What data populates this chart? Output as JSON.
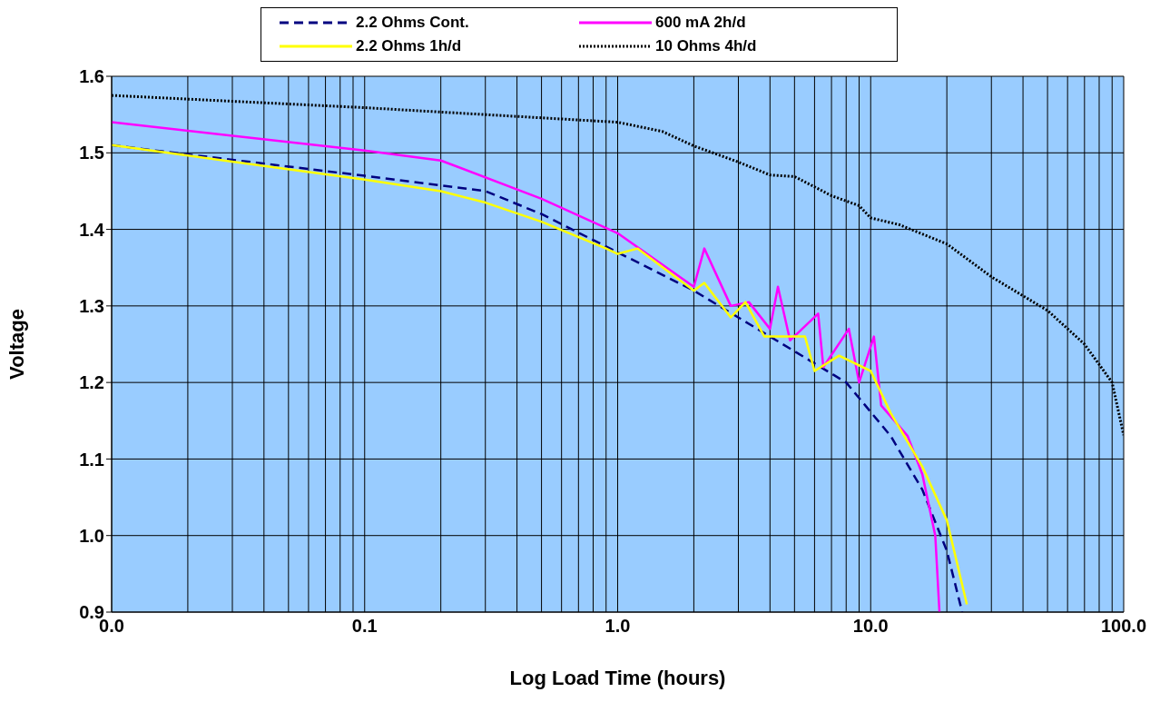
{
  "chart_data": {
    "type": "line",
    "xlabel": "Log Load Time (hours)",
    "ylabel": "Voltage",
    "log": "x",
    "grid": true,
    "legend": "top",
    "xlim": [
      0.01,
      100
    ],
    "xticks": [
      {
        "value": 0.01,
        "label": "0.0"
      },
      {
        "value": 0.02,
        "label": null
      },
      {
        "value": 0.03,
        "label": null
      },
      {
        "value": 0.04,
        "label": null
      },
      {
        "value": 0.05,
        "label": null
      },
      {
        "value": 0.06,
        "label": null
      },
      {
        "value": 0.07,
        "label": null
      },
      {
        "value": 0.08,
        "label": null
      },
      {
        "value": 0.09,
        "label": null
      },
      {
        "value": 0.1,
        "label": "0.1"
      },
      {
        "value": 0.2,
        "label": null
      },
      {
        "value": 0.3,
        "label": null
      },
      {
        "value": 0.4,
        "label": null
      },
      {
        "value": 0.5,
        "label": null
      },
      {
        "value": 0.6,
        "label": null
      },
      {
        "value": 0.7,
        "label": null
      },
      {
        "value": 0.8,
        "label": null
      },
      {
        "value": 0.9,
        "label": null
      },
      {
        "value": 1,
        "label": "1.0"
      },
      {
        "value": 2,
        "label": null
      },
      {
        "value": 3,
        "label": null
      },
      {
        "value": 4,
        "label": null
      },
      {
        "value": 5,
        "label": null
      },
      {
        "value": 6,
        "label": null
      },
      {
        "value": 7,
        "label": null
      },
      {
        "value": 8,
        "label": null
      },
      {
        "value": 9,
        "label": null
      },
      {
        "value": 10,
        "label": "10.0"
      },
      {
        "value": 20,
        "label": null
      },
      {
        "value": 30,
        "label": null
      },
      {
        "value": 40,
        "label": null
      },
      {
        "value": 50,
        "label": null
      },
      {
        "value": 60,
        "label": null
      },
      {
        "value": 70,
        "label": null
      },
      {
        "value": 80,
        "label": null
      },
      {
        "value": 90,
        "label": null
      },
      {
        "value": 100,
        "label": "100.0"
      }
    ],
    "ylim": [
      0.9,
      1.6
    ],
    "yticks": [
      0.9,
      {
        "value": 1,
        "label": "1.0"
      },
      1.1,
      1.2,
      1.3,
      1.4,
      1.5,
      1.6
    ],
    "series": [
      {
        "name": "2.2 Ohms Cont.",
        "color": "#000080",
        "line_style": "dashed",
        "x": [
          0.01,
          0.1,
          0.3,
          0.5,
          1,
          2,
          4,
          8,
          12,
          16,
          20,
          23
        ],
        "values": [
          1.51,
          1.47,
          1.45,
          1.42,
          1.37,
          1.32,
          1.26,
          1.2,
          1.13,
          1.06,
          0.98,
          0.9
        ]
      },
      {
        "name": "600 mA 2h/d",
        "color": "#ff00ff",
        "line_style": "solid",
        "x": [
          0.01,
          0.1,
          0.2,
          0.5,
          1,
          2,
          2.2,
          2.8,
          3.3,
          4,
          4.3,
          4.8,
          6.2,
          6.5,
          8.2,
          9,
          10.3,
          11,
          14,
          16,
          18,
          18.7
        ],
        "values": [
          1.54,
          1.503,
          1.49,
          1.44,
          1.395,
          1.325,
          1.375,
          1.3,
          1.305,
          1.27,
          1.325,
          1.255,
          1.29,
          1.22,
          1.27,
          1.2,
          1.26,
          1.17,
          1.13,
          1.08,
          1.0,
          0.9
        ]
      },
      {
        "name": "2.2 Ohms 1h/d",
        "color": "#ffff00",
        "line_style": "solid",
        "x": [
          0.01,
          0.1,
          0.2,
          0.3,
          0.5,
          0.9,
          1,
          1.2,
          2,
          2.2,
          2.8,
          3.2,
          3.8,
          5.5,
          6,
          7.5,
          10,
          12,
          16,
          20,
          24
        ],
        "values": [
          1.51,
          1.465,
          1.45,
          1.435,
          1.41,
          1.375,
          1.368,
          1.375,
          1.32,
          1.33,
          1.285,
          1.305,
          1.26,
          1.26,
          1.215,
          1.235,
          1.215,
          1.16,
          1.09,
          1.02,
          0.91
        ]
      },
      {
        "name": "10 Ohms 4h/d",
        "color": "#000000",
        "line_style": "dotted",
        "x": [
          0.01,
          0.1,
          1,
          1.5,
          2,
          3,
          4,
          5,
          7,
          9,
          10,
          13,
          20,
          30,
          50,
          70,
          90,
          100
        ],
        "values": [
          1.575,
          1.559,
          1.54,
          1.528,
          1.509,
          1.488,
          1.471,
          1.469,
          1.444,
          1.431,
          1.415,
          1.406,
          1.381,
          1.338,
          1.294,
          1.25,
          1.2,
          1.131
        ]
      }
    ]
  }
}
